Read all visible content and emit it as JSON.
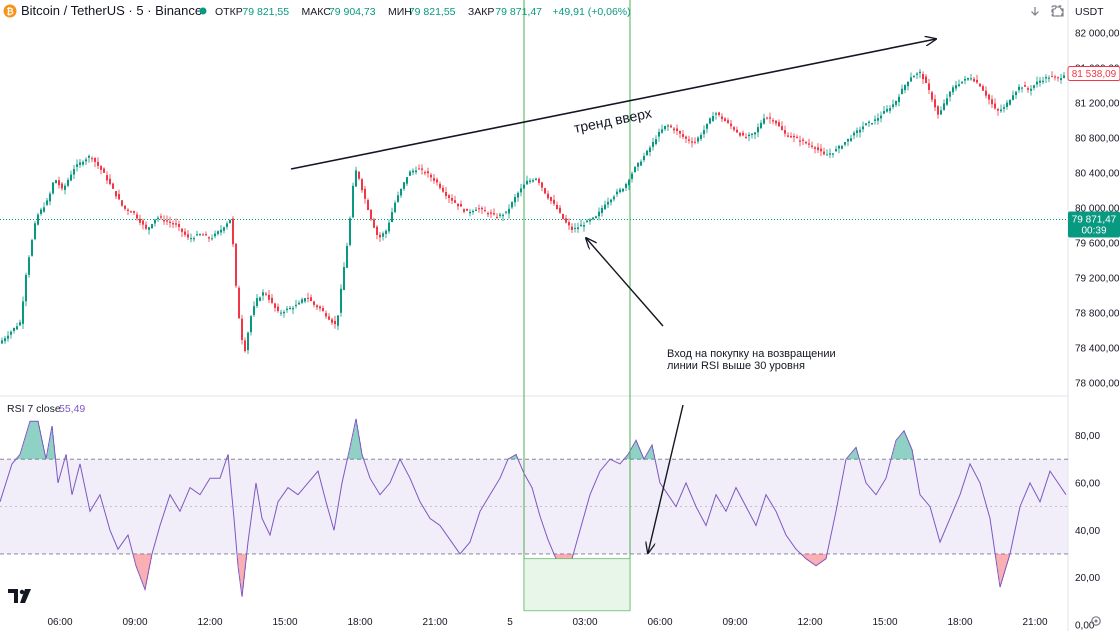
{
  "header": {
    "symbol": "Bitcoin / TetherUS · 5 · Binance",
    "ohlc": [
      {
        "label": "ОТКР",
        "value": "79 821,55"
      },
      {
        "label": "МАКС",
        "value": "79 904,73"
      },
      {
        "label": "МИН",
        "value": "79 821,55"
      },
      {
        "label": "ЗАКР",
        "value": "79 871,47"
      }
    ],
    "change": "+49,91 (+0,06%)"
  },
  "toolbar": {
    "download_icon": "arrow-down-icon",
    "fullscreen_icon": "fullscreen-icon",
    "screenshot_icon": "camera-icon",
    "currency": "USDT"
  },
  "colors": {
    "up": "#089981",
    "down": "#f23645",
    "rsi": "#7e57c2",
    "band_fill": "#ede7f6",
    "vline": "#4caf50",
    "price_badge": "#089981",
    "last_badge": "#f23645"
  },
  "chart_data": [
    {
      "type": "candlestick",
      "symbol": "Bitcoin / TetherUS",
      "interval": "5",
      "exchange": "Binance",
      "ylim": [
        77900,
        82150
      ],
      "y_ticks": [
        "82 000,00",
        "81 600,00",
        "81 200,00",
        "80 800,00",
        "80 400,00",
        "80 000,00",
        "79 600,00",
        "79 200,00",
        "78 800,00",
        "78 400,00",
        "78 000,00"
      ],
      "x_ticks": [
        "06:00",
        "09:00",
        "12:00",
        "15:00",
        "18:00",
        "21:00",
        "5",
        "03:00",
        "06:00",
        "09:00",
        "12:00",
        "15:00",
        "18:00",
        "21:00"
      ],
      "price_path": [
        [
          0,
          78450
        ],
        [
          22,
          78700
        ],
        [
          28,
          79300
        ],
        [
          38,
          79900
        ],
        [
          50,
          80100
        ],
        [
          56,
          80350
        ],
        [
          64,
          80200
        ],
        [
          75,
          80450
        ],
        [
          85,
          80550
        ],
        [
          92,
          80600
        ],
        [
          105,
          80400
        ],
        [
          115,
          80200
        ],
        [
          125,
          80000
        ],
        [
          135,
          79950
        ],
        [
          148,
          79750
        ],
        [
          158,
          79900
        ],
        [
          168,
          79850
        ],
        [
          178,
          79800
        ],
        [
          190,
          79650
        ],
        [
          202,
          79700
        ],
        [
          212,
          79650
        ],
        [
          222,
          79750
        ],
        [
          232,
          79880
        ],
        [
          236,
          79400
        ],
        [
          238,
          79000
        ],
        [
          242,
          78600
        ],
        [
          246,
          78350
        ],
        [
          252,
          78750
        ],
        [
          258,
          78950
        ],
        [
          266,
          79050
        ],
        [
          274,
          78900
        ],
        [
          280,
          78800
        ],
        [
          290,
          78850
        ],
        [
          300,
          78900
        ],
        [
          308,
          79000
        ],
        [
          315,
          78900
        ],
        [
          322,
          78850
        ],
        [
          330,
          78750
        ],
        [
          338,
          78650
        ],
        [
          344,
          79200
        ],
        [
          350,
          79700
        ],
        [
          355,
          80300
        ],
        [
          358,
          80450
        ],
        [
          364,
          80200
        ],
        [
          372,
          79900
        ],
        [
          380,
          79650
        ],
        [
          388,
          79750
        ],
        [
          396,
          80050
        ],
        [
          402,
          80200
        ],
        [
          410,
          80400
        ],
        [
          418,
          80450
        ],
        [
          428,
          80400
        ],
        [
          438,
          80300
        ],
        [
          448,
          80150
        ],
        [
          458,
          80050
        ],
        [
          468,
          79950
        ],
        [
          478,
          80000
        ],
        [
          488,
          79950
        ],
        [
          498,
          79900
        ],
        [
          508,
          79950
        ],
        [
          518,
          80150
        ],
        [
          528,
          80300
        ],
        [
          538,
          80350
        ],
        [
          548,
          80150
        ],
        [
          558,
          80000
        ],
        [
          566,
          79850
        ],
        [
          574,
          79750
        ],
        [
          582,
          79800
        ],
        [
          590,
          79850
        ],
        [
          598,
          79900
        ],
        [
          606,
          80050
        ],
        [
          616,
          80150
        ],
        [
          626,
          80250
        ],
        [
          636,
          80450
        ],
        [
          646,
          80600
        ],
        [
          652,
          80700
        ],
        [
          660,
          80850
        ],
        [
          668,
          80950
        ],
        [
          676,
          80900
        ],
        [
          686,
          80800
        ],
        [
          696,
          80750
        ],
        [
          706,
          80900
        ],
        [
          716,
          81100
        ],
        [
          726,
          81000
        ],
        [
          736,
          80900
        ],
        [
          746,
          80800
        ],
        [
          756,
          80850
        ],
        [
          766,
          81050
        ],
        [
          776,
          81000
        ],
        [
          786,
          80850
        ],
        [
          796,
          80800
        ],
        [
          806,
          80750
        ],
        [
          816,
          80700
        ],
        [
          826,
          80600
        ],
        [
          836,
          80650
        ],
        [
          846,
          80750
        ],
        [
          856,
          80850
        ],
        [
          866,
          80950
        ],
        [
          876,
          81000
        ],
        [
          886,
          81100
        ],
        [
          896,
          81200
        ],
        [
          906,
          81400
        ],
        [
          912,
          81500
        ],
        [
          922,
          81550
        ],
        [
          932,
          81300
        ],
        [
          940,
          81050
        ],
        [
          948,
          81250
        ],
        [
          956,
          81400
        ],
        [
          964,
          81450
        ],
        [
          972,
          81500
        ],
        [
          982,
          81400
        ],
        [
          990,
          81250
        ],
        [
          998,
          81100
        ],
        [
          1006,
          81150
        ],
        [
          1014,
          81300
        ],
        [
          1022,
          81400
        ],
        [
          1030,
          81350
        ],
        [
          1040,
          81450
        ],
        [
          1050,
          81500
        ],
        [
          1060,
          81480
        ],
        [
          1066,
          81538
        ]
      ],
      "current_price": "79 871,47",
      "countdown": "00:39",
      "last_price": "81 538,09",
      "annotations": [
        {
          "text": "тренд вверх",
          "kind": "trend-arrow"
        },
        {
          "text": "Вход на покупку на возвращении",
          "kind": "note"
        },
        {
          "text": "линии RSI выше 30 уровня",
          "kind": "note"
        }
      ]
    },
    {
      "type": "line",
      "indicator": "RSI",
      "label": "RSI 7 close",
      "value": "55,49",
      "ylim": [
        0,
        95
      ],
      "levels": [
        30,
        50,
        70
      ],
      "y_ticks": [
        "80,00",
        "60,00",
        "40,00",
        "20,00",
        "0,00"
      ],
      "rsi_path": [
        [
          0,
          52
        ],
        [
          12,
          68
        ],
        [
          20,
          72
        ],
        [
          30,
          86
        ],
        [
          38,
          86
        ],
        [
          46,
          70
        ],
        [
          52,
          84
        ],
        [
          58,
          60
        ],
        [
          66,
          72
        ],
        [
          72,
          55
        ],
        [
          80,
          68
        ],
        [
          90,
          48
        ],
        [
          100,
          55
        ],
        [
          110,
          40
        ],
        [
          118,
          32
        ],
        [
          128,
          38
        ],
        [
          136,
          25
        ],
        [
          145,
          15
        ],
        [
          152,
          30
        ],
        [
          160,
          42
        ],
        [
          170,
          55
        ],
        [
          180,
          48
        ],
        [
          190,
          58
        ],
        [
          200,
          55
        ],
        [
          210,
          62
        ],
        [
          220,
          62
        ],
        [
          228,
          72
        ],
        [
          234,
          45
        ],
        [
          238,
          25
        ],
        [
          242,
          12
        ],
        [
          248,
          35
        ],
        [
          256,
          60
        ],
        [
          262,
          45
        ],
        [
          270,
          38
        ],
        [
          278,
          52
        ],
        [
          288,
          58
        ],
        [
          298,
          55
        ],
        [
          308,
          60
        ],
        [
          318,
          65
        ],
        [
          326,
          52
        ],
        [
          334,
          40
        ],
        [
          342,
          60
        ],
        [
          350,
          75
        ],
        [
          356,
          87
        ],
        [
          362,
          72
        ],
        [
          370,
          62
        ],
        [
          380,
          55
        ],
        [
          390,
          60
        ],
        [
          400,
          70
        ],
        [
          410,
          62
        ],
        [
          420,
          52
        ],
        [
          430,
          45
        ],
        [
          440,
          42
        ],
        [
          450,
          36
        ],
        [
          460,
          30
        ],
        [
          470,
          35
        ],
        [
          480,
          48
        ],
        [
          490,
          55
        ],
        [
          500,
          62
        ],
        [
          508,
          70
        ],
        [
          516,
          72
        ],
        [
          524,
          64
        ],
        [
          532,
          58
        ],
        [
          540,
          46
        ],
        [
          548,
          36
        ],
        [
          556,
          28
        ],
        [
          564,
          22
        ],
        [
          572,
          28
        ],
        [
          580,
          40
        ],
        [
          590,
          55
        ],
        [
          600,
          65
        ],
        [
          610,
          70
        ],
        [
          620,
          68
        ],
        [
          628,
          72
        ],
        [
          636,
          78
        ],
        [
          644,
          70
        ],
        [
          652,
          76
        ],
        [
          660,
          60
        ],
        [
          668,
          55
        ],
        [
          676,
          50
        ],
        [
          686,
          60
        ],
        [
          696,
          50
        ],
        [
          706,
          42
        ],
        [
          716,
          55
        ],
        [
          726,
          48
        ],
        [
          736,
          58
        ],
        [
          746,
          50
        ],
        [
          756,
          42
        ],
        [
          766,
          55
        ],
        [
          776,
          48
        ],
        [
          786,
          38
        ],
        [
          796,
          32
        ],
        [
          806,
          28
        ],
        [
          816,
          25
        ],
        [
          826,
          28
        ],
        [
          836,
          48
        ],
        [
          846,
          70
        ],
        [
          856,
          75
        ],
        [
          866,
          60
        ],
        [
          876,
          55
        ],
        [
          886,
          62
        ],
        [
          896,
          78
        ],
        [
          904,
          82
        ],
        [
          912,
          74
        ],
        [
          920,
          55
        ],
        [
          930,
          50
        ],
        [
          940,
          35
        ],
        [
          950,
          45
        ],
        [
          960,
          55
        ],
        [
          970,
          68
        ],
        [
          980,
          60
        ],
        [
          990,
          45
        ],
        [
          1000,
          16
        ],
        [
          1010,
          30
        ],
        [
          1020,
          50
        ],
        [
          1030,
          60
        ],
        [
          1040,
          52
        ],
        [
          1050,
          65
        ],
        [
          1058,
          60
        ],
        [
          1066,
          55
        ]
      ]
    }
  ],
  "entry_zone": {
    "from": 524,
    "to": 630
  }
}
